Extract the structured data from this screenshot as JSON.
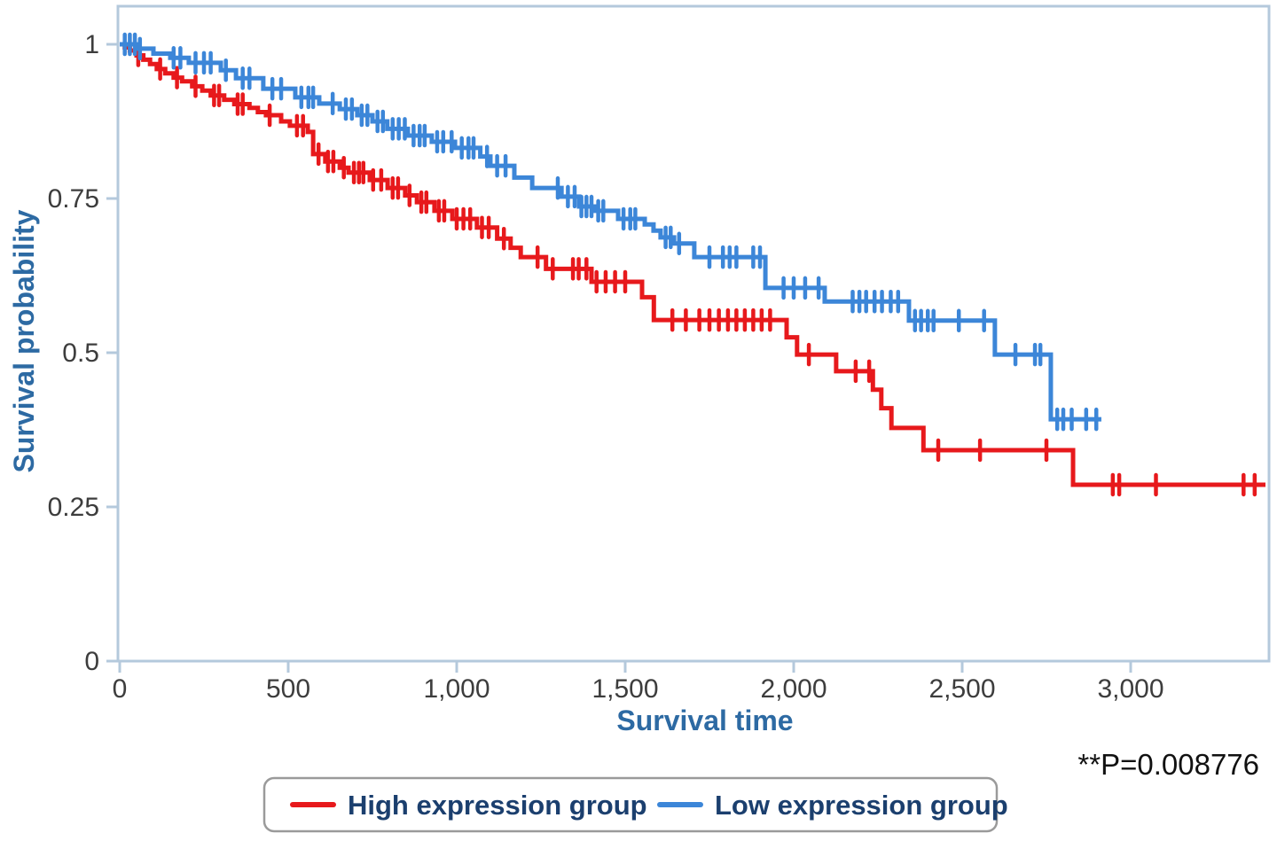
{
  "colors": {
    "high_expression": "#e7191c",
    "low_expression": "#3c86d8",
    "frame": "#b4c9dc",
    "tick_label": "#3d3d3d",
    "axis_title": "#2d6aa3",
    "legend_text": "#1b3f6e",
    "legend_border": "#9a9a9a",
    "annotation_text": "#111111",
    "background": "#ffffff"
  },
  "chart_data": {
    "type": "line",
    "chart_style": "kaplan-meier-step",
    "title": "",
    "xlabel": "Survival time",
    "ylabel": "Survival probability",
    "annotation": "**P=0.008776",
    "grid": false,
    "legend_position": "bottom-center",
    "xlim": [
      0,
      3408
    ],
    "ylim": [
      0,
      1.06
    ],
    "xticks": {
      "values": [
        0,
        500,
        1000,
        1500,
        2000,
        2500,
        3000
      ],
      "labels": [
        "0",
        "500",
        "1,000",
        "1,500",
        "2,000",
        "2,500",
        "3,000"
      ]
    },
    "yticks": {
      "values": [
        0,
        0.25,
        0.5,
        0.75,
        1
      ],
      "labels": [
        "0",
        "0.25",
        "0.5",
        "0.75",
        "1"
      ]
    },
    "series": [
      {
        "id": "high-expression-group",
        "name": "High expression group",
        "color": "#e7191c",
        "end": 3400,
        "steps": [
          [
            0,
            1.0
          ],
          [
            15,
            0.995
          ],
          [
            30,
            0.99
          ],
          [
            50,
            0.982
          ],
          [
            70,
            0.975
          ],
          [
            90,
            0.968
          ],
          [
            110,
            0.96
          ],
          [
            135,
            0.953
          ],
          [
            160,
            0.946
          ],
          [
            185,
            0.94
          ],
          [
            215,
            0.932
          ],
          [
            245,
            0.925
          ],
          [
            270,
            0.917
          ],
          [
            310,
            0.91
          ],
          [
            340,
            0.903
          ],
          [
            385,
            0.897
          ],
          [
            410,
            0.89
          ],
          [
            434,
            0.885
          ],
          [
            479,
            0.875
          ],
          [
            505,
            0.868
          ],
          [
            558,
            0.858
          ],
          [
            574,
            0.822
          ],
          [
            610,
            0.81
          ],
          [
            653,
            0.8
          ],
          [
            679,
            0.792
          ],
          [
            742,
            0.78
          ],
          [
            795,
            0.767
          ],
          [
            847,
            0.755
          ],
          [
            882,
            0.744
          ],
          [
            934,
            0.73
          ],
          [
            987,
            0.717
          ],
          [
            1060,
            0.703
          ],
          [
            1120,
            0.685
          ],
          [
            1160,
            0.67
          ],
          [
            1190,
            0.655
          ],
          [
            1265,
            0.636
          ],
          [
            1400,
            0.615
          ],
          [
            1550,
            0.59
          ],
          [
            1585,
            0.553
          ],
          [
            1979,
            0.525
          ],
          [
            2010,
            0.497
          ],
          [
            2126,
            0.47
          ],
          [
            2235,
            0.44
          ],
          [
            2260,
            0.41
          ],
          [
            2290,
            0.378
          ],
          [
            2385,
            0.342
          ],
          [
            2829,
            0.286
          ]
        ],
        "censors": [
          55,
          120,
          170,
          225,
          280,
          295,
          350,
          365,
          445,
          526,
          544,
          590,
          618,
          634,
          665,
          695,
          710,
          723,
          752,
          776,
          810,
          826,
          860,
          895,
          910,
          947,
          963,
          1000,
          1020,
          1040,
          1075,
          1095,
          1140,
          1240,
          1285,
          1345,
          1362,
          1385,
          1415,
          1442,
          1470,
          1500,
          1640,
          1680,
          1720,
          1750,
          1778,
          1805,
          1830,
          1855,
          1880,
          1905,
          1930,
          2045,
          2184,
          2224,
          2429,
          2553,
          2750,
          2947,
          2966,
          3075,
          3335,
          3368
        ]
      },
      {
        "id": "low-expression-group",
        "name": "Low expression group",
        "color": "#3c86d8",
        "end": 2913,
        "steps": [
          [
            0,
            1.0
          ],
          [
            50,
            0.993
          ],
          [
            100,
            0.985
          ],
          [
            150,
            0.978
          ],
          [
            205,
            0.97
          ],
          [
            300,
            0.958
          ],
          [
            345,
            0.945
          ],
          [
            426,
            0.928
          ],
          [
            521,
            0.914
          ],
          [
            592,
            0.904
          ],
          [
            653,
            0.895
          ],
          [
            705,
            0.885
          ],
          [
            750,
            0.875
          ],
          [
            794,
            0.863
          ],
          [
            855,
            0.852
          ],
          [
            926,
            0.842
          ],
          [
            995,
            0.832
          ],
          [
            1070,
            0.818
          ],
          [
            1100,
            0.803
          ],
          [
            1171,
            0.784
          ],
          [
            1224,
            0.767
          ],
          [
            1311,
            0.753
          ],
          [
            1363,
            0.737
          ],
          [
            1408,
            0.73
          ],
          [
            1479,
            0.717
          ],
          [
            1558,
            0.708
          ],
          [
            1584,
            0.698
          ],
          [
            1605,
            0.687
          ],
          [
            1645,
            0.677
          ],
          [
            1705,
            0.655
          ],
          [
            1916,
            0.605
          ],
          [
            2092,
            0.583
          ],
          [
            2342,
            0.552
          ],
          [
            2597,
            0.497
          ],
          [
            2763,
            0.392
          ]
        ],
        "censors": [
          15,
          30,
          45,
          60,
          160,
          180,
          225,
          250,
          270,
          315,
          365,
          385,
          453,
          479,
          539,
          560,
          574,
          632,
          671,
          689,
          718,
          735,
          765,
          781,
          810,
          828,
          846,
          872,
          890,
          905,
          942,
          960,
          985,
          1015,
          1035,
          1050,
          1090,
          1120,
          1145,
          1300,
          1330,
          1350,
          1370,
          1385,
          1400,
          1420,
          1435,
          1495,
          1515,
          1530,
          1620,
          1635,
          1660,
          1750,
          1790,
          1810,
          1830,
          1880,
          1900,
          1970,
          2000,
          2034,
          2074,
          2175,
          2195,
          2215,
          2240,
          2262,
          2288,
          2310,
          2360,
          2378,
          2398,
          2415,
          2490,
          2565,
          2658,
          2716,
          2732,
          2782,
          2800,
          2825,
          2868,
          2898
        ]
      }
    ]
  }
}
